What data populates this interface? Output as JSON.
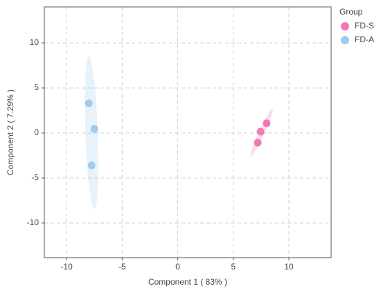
{
  "chart_data": {
    "type": "scatter",
    "xlabel": "Component 1 ( 83% )",
    "ylabel": "Component 2 ( 7.29% )",
    "legend_title": "Group",
    "legend": "right",
    "grid": true,
    "xlim": [
      -12,
      13.8
    ],
    "xticks": [
      -10,
      -5,
      0,
      5,
      10
    ],
    "ylim": [
      -13.85,
      14
    ],
    "yticks": [
      -10,
      -5,
      0,
      5,
      10
    ],
    "series": [
      {
        "name": "FD-S",
        "color": "#f07ab8",
        "x": [
          8.0,
          7.45,
          7.2
        ],
        "values": [
          1.08,
          0.15,
          -1.08
        ]
      },
      {
        "name": "FD-A",
        "color": "#9ecbf0",
        "x": [
          -8.0,
          -7.5,
          -7.75
        ],
        "values": [
          3.3,
          0.45,
          -3.6
        ]
      }
    ]
  }
}
